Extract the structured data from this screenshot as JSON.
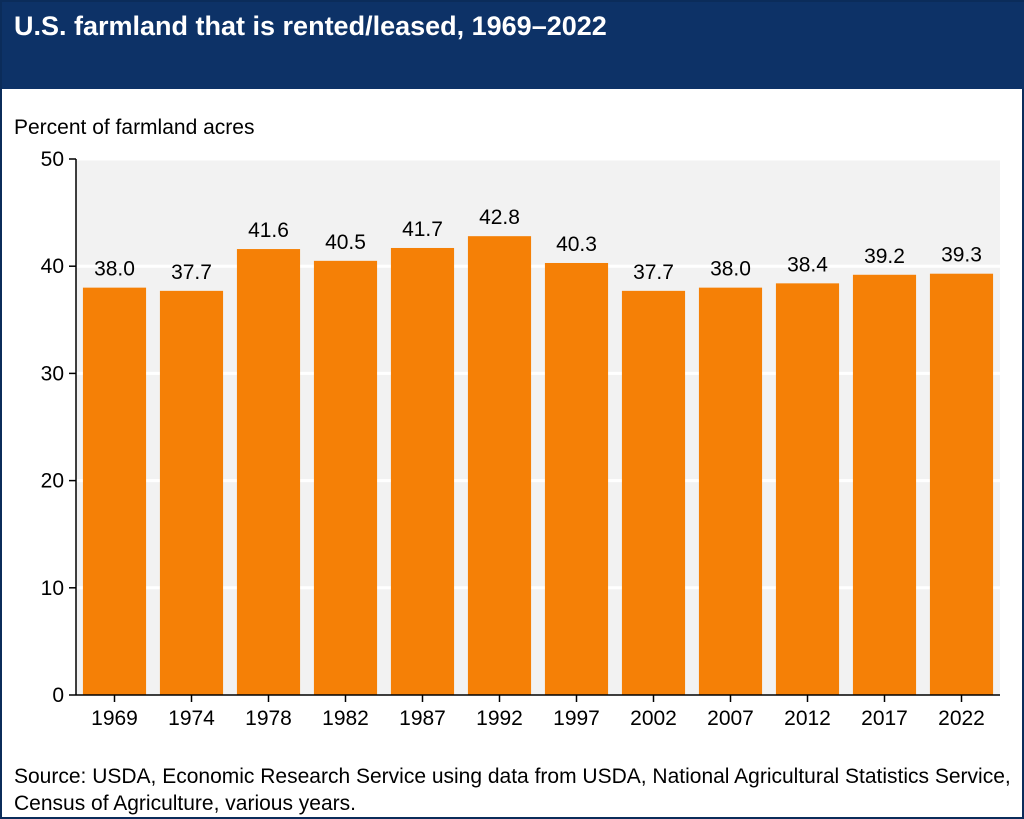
{
  "title": "U.S. farmland that is rented/leased, 1969–2022",
  "source": "Source: USDA, Economic Research Service using data from USDA, National Agricultural Statistics Service, Census of Agriculture, various years.",
  "colors": {
    "header": "#0d3267",
    "bar": "#f58006",
    "plot_background": "#f2f2f2",
    "gridline": "#ffffff",
    "text": "#000000"
  },
  "chart_data": {
    "type": "bar",
    "title": "U.S. farmland that is rented/leased, 1969–2022",
    "ylabel": "Percent of farmland acres",
    "xlabel": "",
    "categories": [
      "1969",
      "1974",
      "1978",
      "1982",
      "1987",
      "1992",
      "1997",
      "2002",
      "2007",
      "2012",
      "2017",
      "2022"
    ],
    "values": [
      38.0,
      37.7,
      41.6,
      40.5,
      41.7,
      42.8,
      40.3,
      37.7,
      38.0,
      38.4,
      39.2,
      39.3
    ],
    "value_labels": [
      "38.0",
      "37.7",
      "41.6",
      "40.5",
      "41.7",
      "42.8",
      "40.3",
      "37.7",
      "38.0",
      "38.4",
      "39.2",
      "39.3"
    ],
    "ylim": [
      0,
      50
    ],
    "yticks": [
      "0",
      "10",
      "20",
      "30",
      "40",
      "50"
    ],
    "grid": true,
    "legend": "none"
  }
}
